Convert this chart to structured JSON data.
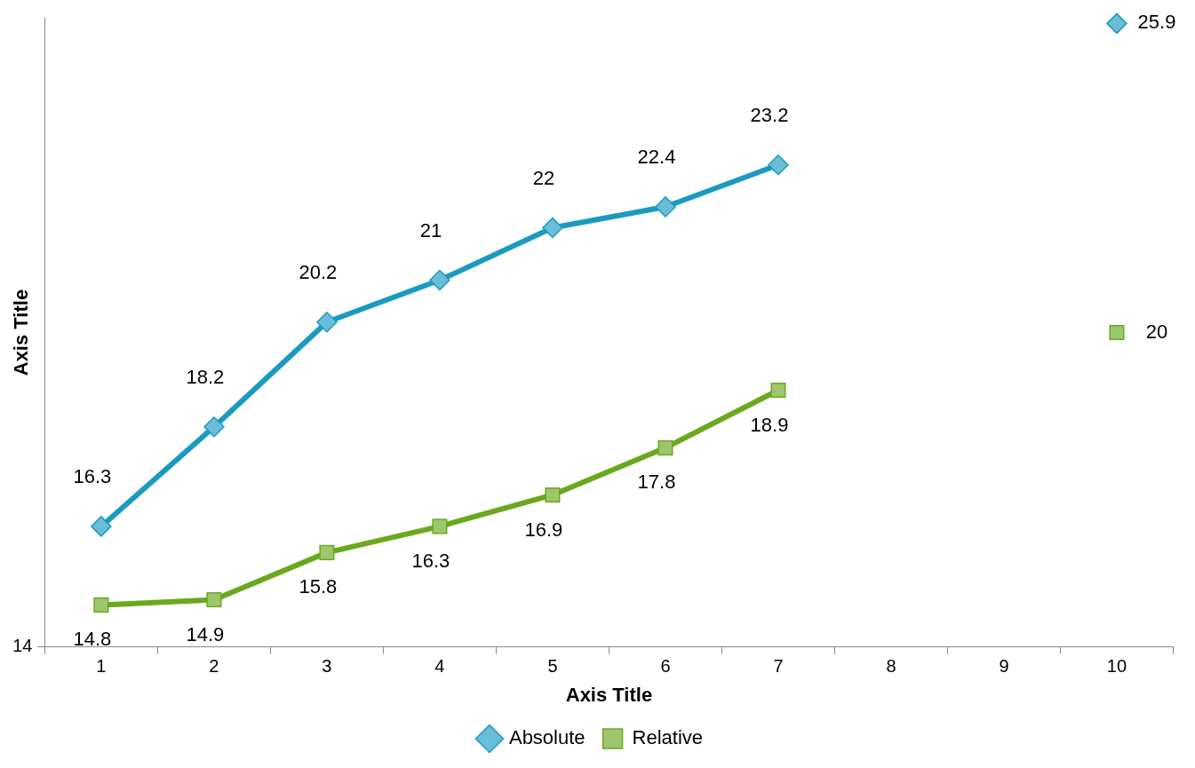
{
  "chart_data": {
    "type": "line",
    "xlabel": "Axis Title",
    "ylabel": "Axis Title",
    "categories": [
      "1",
      "2",
      "3",
      "4",
      "5",
      "6",
      "7",
      "8",
      "9",
      "10"
    ],
    "series": [
      {
        "name": "Absolute",
        "color": "#1a9ac0",
        "marker": "diamond",
        "values": [
          16.3,
          18.2,
          20.2,
          21,
          22,
          22.4,
          23.2,
          null,
          null,
          25.9
        ]
      },
      {
        "name": "Relative",
        "color": "#6aa81e",
        "marker": "square",
        "values": [
          14.8,
          14.9,
          15.8,
          16.3,
          16.9,
          17.8,
          18.9,
          null,
          null,
          20
        ]
      }
    ],
    "annotations": [
      "14"
    ],
    "grid": false,
    "legend": "bottom",
    "data_labels": true,
    "line_style": "solid"
  }
}
